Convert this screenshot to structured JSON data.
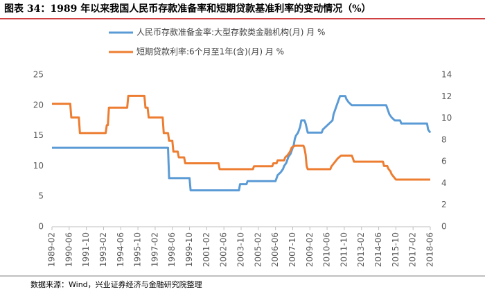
{
  "chart_data": {
    "type": "line",
    "title": "图表 34：1989 年以来我国人民币存款准备率和短期贷款基准利率的变动情况（%）",
    "source": "数据来源：Wind，兴业证券经济与金融研究院整理",
    "xlim": [
      "1989-02",
      "2018-06"
    ],
    "xticks": [
      "1989-02",
      "1990-06",
      "1991-10",
      "1993-02",
      "1994-06",
      "1995-10",
      "1997-02",
      "1998-06",
      "1999-10",
      "2001-02",
      "2002-06",
      "2003-10",
      "2005-02",
      "2006-06",
      "2007-10",
      "2009-02",
      "2010-06",
      "2011-10",
      "2013-02",
      "2014-06",
      "2015-10",
      "2017-02",
      "2018-06"
    ],
    "ylim": [
      0,
      25
    ],
    "yticks": [
      0,
      5,
      10,
      15,
      20,
      25
    ],
    "y2lim": [
      0,
      14
    ],
    "y2ticks": [
      0,
      2,
      4,
      6,
      8,
      10,
      12,
      14
    ],
    "series": [
      {
        "name": "人民币存款准备金率:大型存款类金融机构(月) 月 %",
        "color": "#5b9bd5",
        "x": [
          "1989-02",
          "1998-02",
          "1998-03",
          "1999-10",
          "1999-11",
          "2003-08",
          "2003-09",
          "2004-03",
          "2004-04",
          "2006-06",
          "2006-07",
          "2006-08",
          "2006-11",
          "2007-01",
          "2007-02",
          "2007-04",
          "2007-05",
          "2007-06",
          "2007-08",
          "2007-09",
          "2007-10",
          "2007-11",
          "2007-12",
          "2008-01",
          "2008-03",
          "2008-04",
          "2008-05",
          "2008-06",
          "2008-09",
          "2008-10",
          "2008-12",
          "2010-01",
          "2010-02",
          "2010-05",
          "2010-11",
          "2010-12",
          "2011-01",
          "2011-02",
          "2011-03",
          "2011-04",
          "2011-05",
          "2011-06",
          "2011-11",
          "2011-12",
          "2012-02",
          "2012-05",
          "2015-01",
          "2015-02",
          "2015-04",
          "2015-06",
          "2015-09",
          "2016-02",
          "2016-03",
          "2018-03",
          "2018-04",
          "2018-06"
        ],
        "values": [
          13,
          13,
          8,
          8,
          6,
          6,
          7,
          7,
          7.5,
          7.5,
          8,
          8.5,
          9,
          9.5,
          10,
          10.5,
          11,
          11.5,
          12,
          12.5,
          13,
          13.5,
          14.5,
          15,
          15.5,
          16,
          16.5,
          17.5,
          17.5,
          17,
          15.5,
          15.5,
          16,
          16.5,
          17.5,
          18.5,
          19,
          19.5,
          20,
          20.5,
          21,
          21.5,
          21.5,
          21,
          20.5,
          20,
          20,
          19.5,
          18.5,
          18,
          17.5,
          17.5,
          17,
          17,
          16,
          15.5
        ]
      },
      {
        "name": "短期贷款利率:6个月至1年(含)(月) 月 %",
        "color": "#ed7d31",
        "axis": "y2",
        "x": [
          "1989-02",
          "1990-07",
          "1990-08",
          "1991-03",
          "1991-04",
          "1993-04",
          "1993-05",
          "1993-06",
          "1993-07",
          "1994-12",
          "1995-01",
          "1996-04",
          "1996-05",
          "1996-07",
          "1996-08",
          "1997-09",
          "1997-10",
          "1998-02",
          "1998-03",
          "1998-06",
          "1998-07",
          "1998-11",
          "1998-12",
          "1999-05",
          "1999-06",
          "2002-01",
          "2002-02",
          "2004-09",
          "2004-10",
          "2006-03",
          "2006-04",
          "2006-07",
          "2006-08",
          "2007-02",
          "2007-03",
          "2007-05",
          "2007-07",
          "2007-08",
          "2007-09",
          "2007-12",
          "2008-08",
          "2008-09",
          "2008-10",
          "2008-11",
          "2008-12",
          "2010-09",
          "2010-10",
          "2010-12",
          "2011-02",
          "2011-04",
          "2011-07",
          "2012-05",
          "2012-06",
          "2012-07",
          "2014-10",
          "2014-11",
          "2015-02",
          "2015-03",
          "2015-05",
          "2015-06",
          "2015-08",
          "2015-10",
          "2018-06"
        ],
        "values": [
          11.34,
          11.34,
          10.08,
          10.08,
          8.64,
          8.64,
          9.36,
          9.36,
          10.98,
          10.98,
          12.06,
          12.06,
          10.98,
          10.98,
          10.08,
          10.08,
          8.64,
          8.64,
          7.92,
          7.92,
          6.93,
          6.93,
          6.39,
          6.39,
          5.85,
          5.85,
          5.31,
          5.31,
          5.58,
          5.58,
          5.85,
          5.85,
          6.12,
          6.12,
          6.39,
          6.57,
          6.84,
          7.02,
          7.29,
          7.47,
          7.47,
          7.2,
          6.66,
          5.58,
          5.31,
          5.31,
          5.56,
          5.81,
          6.06,
          6.31,
          6.56,
          6.56,
          6.31,
          6.0,
          6.0,
          5.6,
          5.6,
          5.35,
          5.1,
          4.85,
          4.6,
          4.35,
          4.35
        ]
      }
    ]
  }
}
